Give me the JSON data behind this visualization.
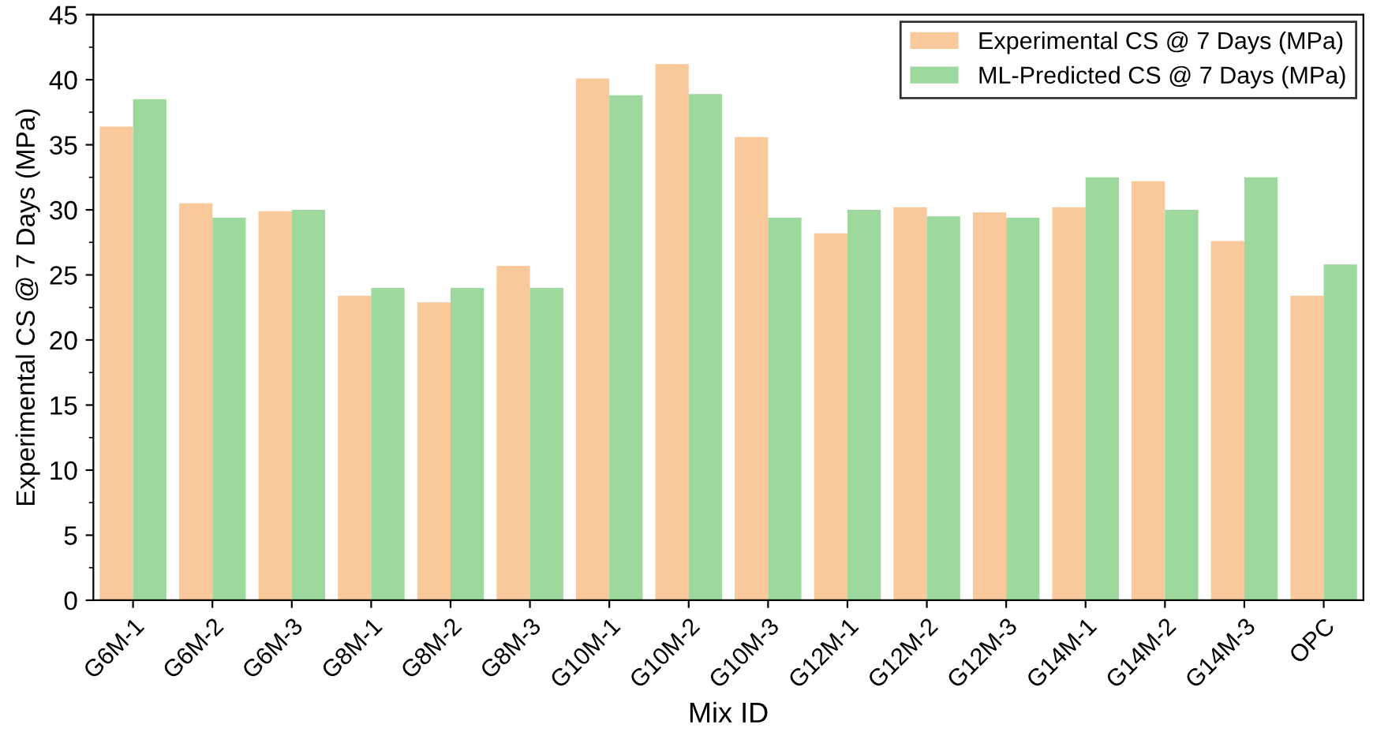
{
  "chart_data": {
    "type": "bar",
    "xlabel": "Mix ID",
    "ylabel": "Experimental CS @ 7 Days (MPa)",
    "categories": [
      "G6M-1",
      "G6M-2",
      "G6M-3",
      "G8M-1",
      "G8M-2",
      "G8M-3",
      "G10M-1",
      "G10M-2",
      "G10M-3",
      "G12M-1",
      "G12M-2",
      "G12M-3",
      "G14M-1",
      "G14M-2",
      "G14M-3",
      "OPC"
    ],
    "series": [
      {
        "name": "Experimental CS @ 7 Days (MPa)",
        "color": "#f9c89b",
        "values": [
          36.4,
          30.5,
          29.9,
          23.4,
          22.9,
          25.7,
          40.1,
          41.2,
          35.6,
          28.2,
          30.2,
          29.8,
          30.2,
          32.2,
          27.6,
          23.4
        ]
      },
      {
        "name": "ML-Predicted CS @ 7 Days (MPa)",
        "color": "#9dd89c",
        "values": [
          38.5,
          29.4,
          30.0,
          24.0,
          24.0,
          24.0,
          38.8,
          38.9,
          29.4,
          30.0,
          29.5,
          29.4,
          32.5,
          30.0,
          32.5,
          25.8
        ]
      }
    ],
    "ylim": [
      0,
      45
    ],
    "yticks": [
      0,
      5,
      10,
      15,
      20,
      25,
      30,
      35,
      40,
      45
    ],
    "grid": false,
    "legend": "top right"
  }
}
